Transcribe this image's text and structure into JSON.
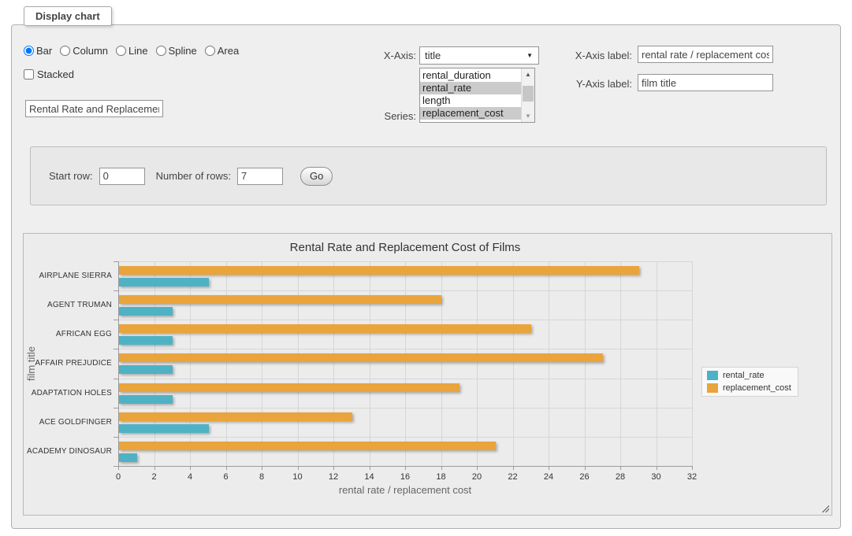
{
  "window": {
    "legend": "Display chart"
  },
  "chart_type": {
    "options": [
      {
        "label": "Bar",
        "selected": true
      },
      {
        "label": "Column",
        "selected": false
      },
      {
        "label": "Line",
        "selected": false
      },
      {
        "label": "Spline",
        "selected": false
      },
      {
        "label": "Area",
        "selected": false
      }
    ]
  },
  "stacked": {
    "label": "Stacked",
    "checked": false
  },
  "title_input": {
    "value": "Rental Rate and Replacement Cost of Films"
  },
  "x_axis": {
    "label": "X-Axis:",
    "selected": "title"
  },
  "series_list": {
    "label": "Series:",
    "options": [
      {
        "label": "rental_duration",
        "selected": false
      },
      {
        "label": "rental_rate",
        "selected": true
      },
      {
        "label": "length",
        "selected": false
      },
      {
        "label": "replacement_cost",
        "selected": true
      }
    ]
  },
  "x_axis_label": {
    "label": "X-Axis label:",
    "value": "rental rate / replacement cost"
  },
  "y_axis_label": {
    "label": "Y-Axis label:",
    "value": "film title"
  },
  "row_controls": {
    "start_row_label": "Start row:",
    "start_row_value": "0",
    "rows_label": "Number of rows:",
    "rows_value": "7",
    "go_label": "Go"
  },
  "chart_data": {
    "type": "bar",
    "title": "Rental Rate and Replacement Cost of Films",
    "categories": [
      "AIRPLANE SIERRA",
      "AGENT TRUMAN",
      "AFRICAN EGG",
      "AFFAIR PREJUDICE",
      "ADAPTATION HOLES",
      "ACE GOLDFINGER",
      "ACADEMY DINOSAUR"
    ],
    "series": [
      {
        "name": "rental_rate",
        "color": "#4FB2C4",
        "values": [
          4.99,
          2.99,
          2.99,
          2.99,
          2.99,
          4.99,
          0.99
        ]
      },
      {
        "name": "replacement_cost",
        "color": "#E9A43C",
        "values": [
          28.99,
          17.99,
          22.99,
          26.99,
          18.99,
          12.99,
          20.99
        ]
      }
    ],
    "xlabel": "rental rate / replacement cost",
    "ylabel": "film title",
    "xlim": [
      0,
      32
    ],
    "xtick_step": 2,
    "grid": true,
    "legend_position": "right",
    "bar_group_order_top_to_bottom": [
      "replacement_cost",
      "rental_rate"
    ]
  }
}
